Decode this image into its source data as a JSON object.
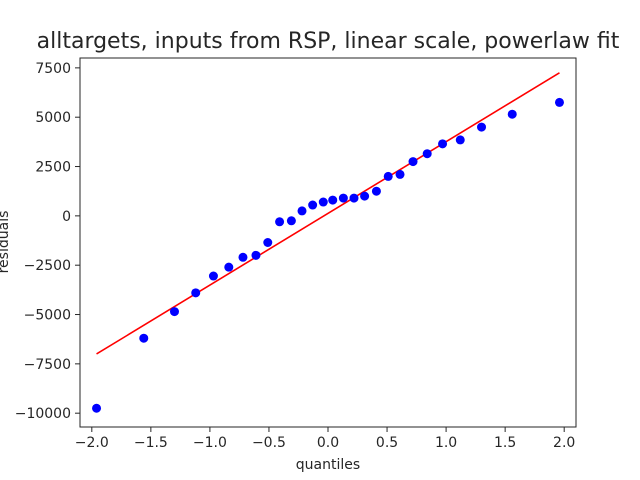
{
  "chart_data": {
    "type": "scatter",
    "title": "alltargets, inputs from RSP, linear scale, powerlaw fit",
    "xlabel": "quantiles",
    "ylabel": "residuals",
    "xlim": [
      -2.1,
      2.1
    ],
    "ylim": [
      -10700,
      8000
    ],
    "xticks": [
      -2.0,
      -1.5,
      -1.0,
      -0.5,
      0.0,
      0.5,
      1.0,
      1.5,
      2.0
    ],
    "xtick_labels": [
      "−2.0",
      "−1.5",
      "−1.0",
      "−0.5",
      "0.0",
      "0.5",
      "1.0",
      "1.5",
      "2.0"
    ],
    "yticks": [
      -10000,
      -7500,
      -5000,
      -2500,
      0,
      2500,
      5000,
      7500
    ],
    "ytick_labels": [
      "−10000",
      "−7500",
      "−5000",
      "−2500",
      "0",
      "2500",
      "5000",
      "7500"
    ],
    "grid": false,
    "colors": {
      "points": "#0000ff",
      "fit_line": "#ff0000"
    },
    "fit_line": {
      "x": [
        -1.96,
        1.96
      ],
      "y": [
        -7000,
        7250
      ]
    },
    "points": {
      "x": [
        -1.96,
        -1.56,
        -1.3,
        -1.12,
        -0.97,
        -0.84,
        -0.72,
        -0.61,
        -0.51,
        -0.41,
        -0.31,
        -0.22,
        -0.13,
        -0.04,
        0.04,
        0.13,
        0.22,
        0.31,
        0.41,
        0.51,
        0.61,
        0.72,
        0.84,
        0.97,
        1.12,
        1.3,
        1.56,
        1.96
      ],
      "y": [
        -9750,
        -6200,
        -4850,
        -3900,
        -3050,
        -2600,
        -2100,
        -2000,
        -1350,
        -300,
        -250,
        250,
        550,
        700,
        800,
        900,
        900,
        1000,
        1250,
        2000,
        2100,
        2750,
        3150,
        3650,
        3850,
        4500,
        5150,
        5750
      ]
    }
  }
}
